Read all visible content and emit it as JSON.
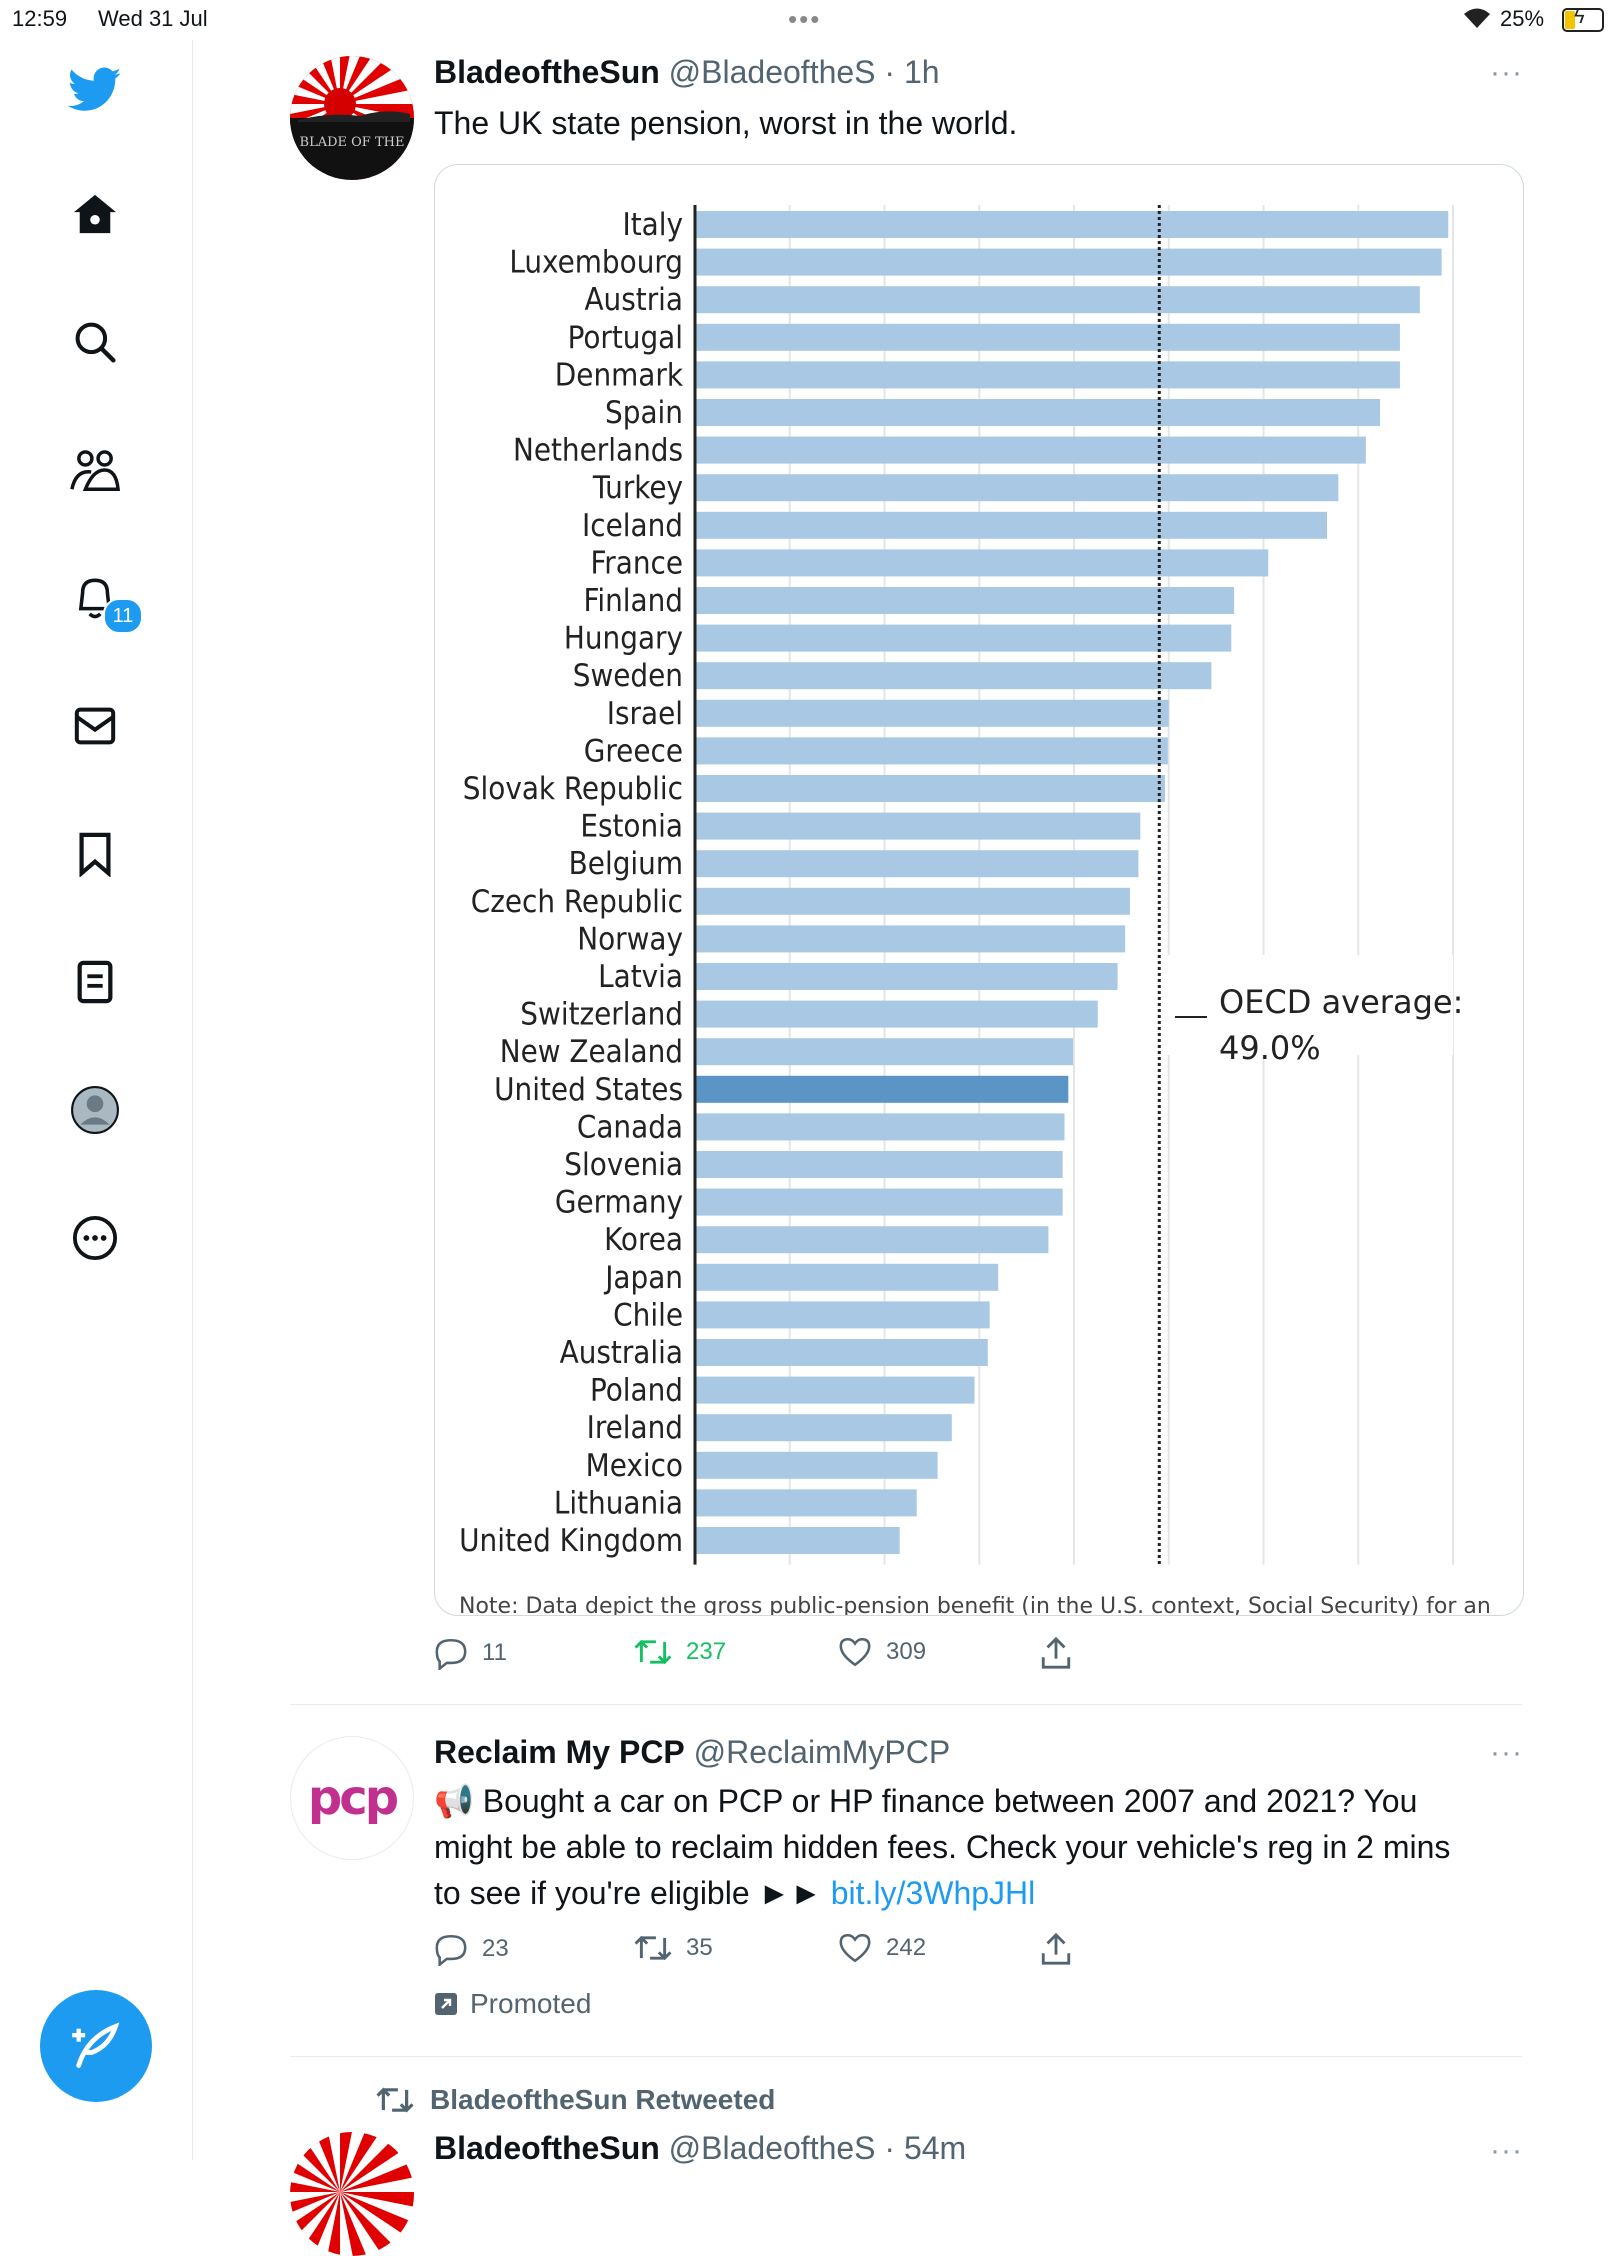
{
  "status_bar": {
    "time": "12:59",
    "date": "Wed 31 Jul",
    "battery": "25%"
  },
  "sidebar": {
    "notifications_badge": "11"
  },
  "tweet1": {
    "name": "BladeoftheSun",
    "handle": "@BladeoftheS · 1h",
    "text": "The UK state pension, worst in the world.",
    "avatar_text": "BLADE OF THE",
    "chart_note": "Note: Data depict the gross public-pension benefit (in the U.S. context, Social Security) for an",
    "replies": "11",
    "retweets": "237",
    "likes": "309"
  },
  "chart_data": {
    "type": "bar",
    "orientation": "horizontal",
    "categories": [
      "Italy",
      "Luxembourg",
      "Austria",
      "Portugal",
      "Denmark",
      "Spain",
      "Netherlands",
      "Turkey",
      "Iceland",
      "France",
      "Finland",
      "Hungary",
      "Sweden",
      "Israel",
      "Greece",
      "Slovak Republic",
      "Estonia",
      "Belgium",
      "Czech Republic",
      "Norway",
      "Latvia",
      "Switzerland",
      "New Zealand",
      "United States",
      "Canada",
      "Slovenia",
      "Germany",
      "Korea",
      "Japan",
      "Chile",
      "Australia",
      "Poland",
      "Ireland",
      "Mexico",
      "Lithuania",
      "United Kingdom"
    ],
    "values": [
      79.5,
      78.8,
      76.5,
      74.4,
      74.4,
      72.3,
      70.8,
      67.9,
      66.7,
      60.5,
      56.9,
      56.6,
      54.5,
      50.0,
      49.9,
      49.6,
      47.0,
      46.8,
      45.9,
      45.4,
      44.6,
      42.5,
      39.9,
      39.4,
      39.0,
      38.8,
      38.8,
      37.3,
      32.0,
      31.1,
      30.9,
      29.5,
      27.1,
      25.6,
      23.4,
      21.6
    ],
    "highlight": "United States",
    "bar_color": "#a8c8e4",
    "highlight_color": "#5a95c6",
    "reference_line": {
      "value": 49.0,
      "label": "OECD average:",
      "value_label": "49.0%"
    },
    "xlim": [
      0,
      80
    ],
    "grid": true
  },
  "tweet2": {
    "name": "Reclaim My PCP",
    "handle": "@ReclaimMyPCP",
    "avatar_text": "pcp",
    "text_line1": "📢 Bought a car on PCP or HP finance between 2007 and 2021? You",
    "text_line2": "might be able to reclaim hidden fees. Check your vehicle's reg in 2 mins",
    "text_line3": "to see if you're eligible ►► ",
    "link": "bit.ly/3WhpJHl",
    "replies": "23",
    "retweets": "35",
    "likes": "242",
    "promoted": "Promoted"
  },
  "tweet3": {
    "retweeted_by": "BladeoftheSun Retweeted",
    "name": "BladeoftheSun",
    "handle": "@BladeoftheS · 54m"
  },
  "colors": {
    "accent": "#1d9bf0",
    "retweet_green": "#17bf63"
  }
}
